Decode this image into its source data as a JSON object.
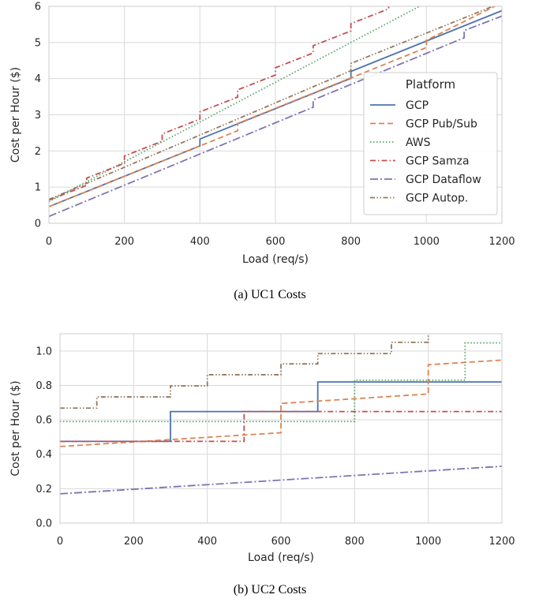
{
  "chart_data": [
    {
      "type": "line",
      "caption": "(a) UC1 Costs",
      "xlabel": "Load (req/s)",
      "ylabel": "Cost per Hour ($)",
      "xlim": [
        0,
        1200
      ],
      "ylim": [
        0,
        6
      ],
      "xticks": [
        "0",
        "200",
        "400",
        "600",
        "800",
        "1000",
        "1200"
      ],
      "yticks": [
        "0",
        "1",
        "2",
        "3",
        "4",
        "5",
        "6"
      ],
      "grid": true,
      "legend": {
        "title": "Platform",
        "placement": "lower-right",
        "entries": [
          "GCP",
          "GCP Pub/Sub",
          "AWS",
          "GCP Samza",
          "GCP Dataflow",
          "GCP Autop."
        ]
      },
      "series": [
        {
          "name": "GCP",
          "color": "#4c72b0",
          "dash": "solid",
          "points": [
            [
              0,
              0.46
            ],
            [
              400,
              2.14
            ],
            [
              400,
              2.33
            ],
            [
              800,
              4.01
            ],
            [
              800,
              4.2
            ],
            [
              1200,
              5.88
            ]
          ]
        },
        {
          "name": "GCP Pub/Sub",
          "color": "#dd8452",
          "dash": "dashed",
          "points": [
            [
              0,
              0.46
            ],
            [
              500,
              2.56
            ],
            [
              500,
              2.76
            ],
            [
              1000,
              4.86
            ],
            [
              1000,
              5.06
            ],
            [
              1200,
              6.1
            ]
          ]
        },
        {
          "name": "AWS",
          "color": "#55a868",
          "dash": "dotted",
          "points": [
            [
              0,
              0.6
            ],
            [
              1000,
              6.1
            ]
          ]
        },
        {
          "name": "GCP Samza",
          "color": "#c44e52",
          "dash": "dashdot",
          "points": [
            [
              0,
              0.64
            ],
            [
              100,
              1.05
            ],
            [
              100,
              1.25
            ],
            [
              200,
              1.66
            ],
            [
              200,
              1.86
            ],
            [
              300,
              2.27
            ],
            [
              300,
              2.47
            ],
            [
              400,
              2.88
            ],
            [
              400,
              3.08
            ],
            [
              500,
              3.49
            ],
            [
              500,
              3.69
            ],
            [
              600,
              4.1
            ],
            [
              600,
              4.3
            ],
            [
              700,
              4.71
            ],
            [
              700,
              4.91
            ],
            [
              800,
              5.32
            ],
            [
              800,
              5.52
            ],
            [
              900,
              5.93
            ],
            [
              900,
              6.1
            ]
          ]
        },
        {
          "name": "GCP Dataflow",
          "color": "#8172b3",
          "dash": "dashdot-long",
          "points": [
            [
              0,
              0.19
            ],
            [
              700,
              3.21
            ],
            [
              700,
              3.41
            ],
            [
              1100,
              5.13
            ],
            [
              1100,
              5.33
            ],
            [
              1200,
              5.73
            ]
          ]
        },
        {
          "name": "GCP Autop.",
          "color": "#937860",
          "dash": "dashdotdot",
          "points": [
            [
              0,
              0.66
            ],
            [
              800,
              4.22
            ],
            [
              800,
              4.42
            ],
            [
              1200,
              6.1
            ]
          ]
        }
      ]
    },
    {
      "type": "line",
      "caption": "(b) UC2 Costs",
      "xlabel": "Load (req/s)",
      "ylabel": "Cost per Hour ($)",
      "xlim": [
        0,
        1200
      ],
      "ylim": [
        0,
        1.1
      ],
      "xticks": [
        "0",
        "200",
        "400",
        "600",
        "800",
        "1000",
        "1200"
      ],
      "yticks": [
        "0.0",
        "0.2",
        "0.4",
        "0.6",
        "0.8",
        "1.0"
      ],
      "ytick_values": [
        0,
        0.2,
        0.4,
        0.6,
        0.8,
        1.0
      ],
      "grid": true,
      "series": [
        {
          "name": "GCP",
          "color": "#4c72b0",
          "dash": "solid",
          "points": [
            [
              0,
              0.475
            ],
            [
              300,
              0.475
            ],
            [
              300,
              0.648
            ],
            [
              700,
              0.648
            ],
            [
              700,
              0.82
            ],
            [
              1200,
              0.82
            ]
          ]
        },
        {
          "name": "GCP Pub/Sub",
          "color": "#dd8452",
          "dash": "dashed",
          "points": [
            [
              0,
              0.445
            ],
            [
              600,
              0.525
            ],
            [
              600,
              0.695
            ],
            [
              1000,
              0.75
            ],
            [
              1000,
              0.92
            ],
            [
              1200,
              0.947
            ]
          ]
        },
        {
          "name": "AWS",
          "color": "#55a868",
          "dash": "dotted",
          "points": [
            [
              0,
              0.59
            ],
            [
              800,
              0.59
            ],
            [
              800,
              0.83
            ],
            [
              1100,
              0.83
            ],
            [
              1100,
              1.047
            ],
            [
              1200,
              1.047
            ]
          ]
        },
        {
          "name": "GCP Samza",
          "color": "#c44e52",
          "dash": "dashdot",
          "points": [
            [
              0,
              0.475
            ],
            [
              500,
              0.475
            ],
            [
              500,
              0.648
            ],
            [
              1200,
              0.648
            ]
          ]
        },
        {
          "name": "GCP Dataflow",
          "color": "#8172b3",
          "dash": "dashdot-long",
          "points": [
            [
              0,
              0.17
            ],
            [
              1200,
              0.33
            ]
          ]
        },
        {
          "name": "GCP Autop.",
          "color": "#937860",
          "dash": "dashdotdot",
          "points": [
            [
              0,
              0.668
            ],
            [
              100,
              0.668
            ],
            [
              100,
              0.733
            ],
            [
              300,
              0.733
            ],
            [
              300,
              0.797
            ],
            [
              400,
              0.797
            ],
            [
              400,
              0.862
            ],
            [
              600,
              0.862
            ],
            [
              600,
              0.925
            ],
            [
              700,
              0.925
            ],
            [
              700,
              0.985
            ],
            [
              900,
              0.985
            ],
            [
              900,
              1.05
            ],
            [
              1000,
              1.05
            ],
            [
              1000,
              1.1
            ]
          ]
        }
      ]
    }
  ]
}
